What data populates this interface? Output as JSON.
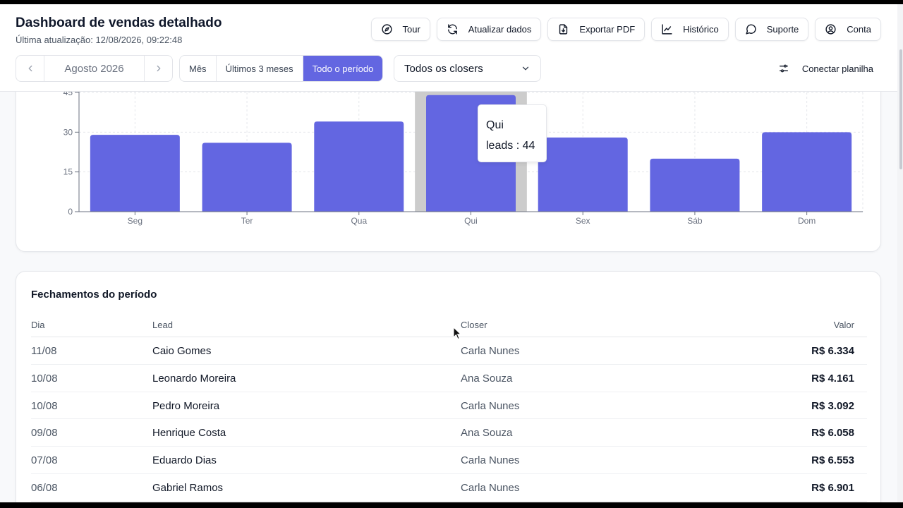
{
  "header": {
    "title": "Dashboard de vendas detalhado",
    "subtitle": "Última atualização: 12/08/2026, 09:22:48",
    "actions": [
      {
        "label": "Tour",
        "icon": "compass-icon"
      },
      {
        "label": "Atualizar dados",
        "icon": "refresh-icon"
      },
      {
        "label": "Exportar PDF",
        "icon": "file-pdf-icon"
      },
      {
        "label": "Histórico",
        "icon": "line-chart-icon"
      },
      {
        "label": "Suporte",
        "icon": "chat-bubble-icon"
      },
      {
        "label": "Conta",
        "icon": "user-circle-icon"
      }
    ]
  },
  "controls": {
    "month": "Agosto 2026",
    "periods": [
      "Mês",
      "Últimos 3 meses",
      "Todo o período"
    ],
    "active_period": "Todo o período",
    "closer_select": "Todos os closers",
    "connect": "Conectar planilha"
  },
  "chart_data": {
    "type": "bar",
    "categories": [
      "Seg",
      "Ter",
      "Qua",
      "Qui",
      "Sex",
      "Sáb",
      "Dom"
    ],
    "series": [
      {
        "name": "leads",
        "values": [
          29,
          26,
          34,
          44,
          28,
          20,
          30
        ]
      }
    ],
    "ylim": [
      0,
      45
    ],
    "yticks": [
      0,
      15,
      30,
      45
    ],
    "grid": true,
    "bar_color": "#6366e1",
    "highlighted_category": "Qui",
    "tooltip": {
      "title": "Qui",
      "text": "leads : 44"
    }
  },
  "table": {
    "title": "Fechamentos do período",
    "columns": [
      "Dia",
      "Lead",
      "Closer",
      "Valor"
    ],
    "rows": [
      {
        "dia": "11/08",
        "lead": "Caio Gomes",
        "closer": "Carla Nunes",
        "valor": "R$ 6.334"
      },
      {
        "dia": "10/08",
        "lead": "Leonardo Moreira",
        "closer": "Ana Souza",
        "valor": "R$ 4.161"
      },
      {
        "dia": "10/08",
        "lead": "Pedro Moreira",
        "closer": "Carla Nunes",
        "valor": "R$ 3.092"
      },
      {
        "dia": "09/08",
        "lead": "Henrique Costa",
        "closer": "Ana Souza",
        "valor": "R$ 6.058"
      },
      {
        "dia": "07/08",
        "lead": "Eduardo Dias",
        "closer": "Carla Nunes",
        "valor": "R$ 6.553"
      },
      {
        "dia": "06/08",
        "lead": "Gabriel Ramos",
        "closer": "Carla Nunes",
        "valor": "R$ 6.901"
      }
    ]
  }
}
